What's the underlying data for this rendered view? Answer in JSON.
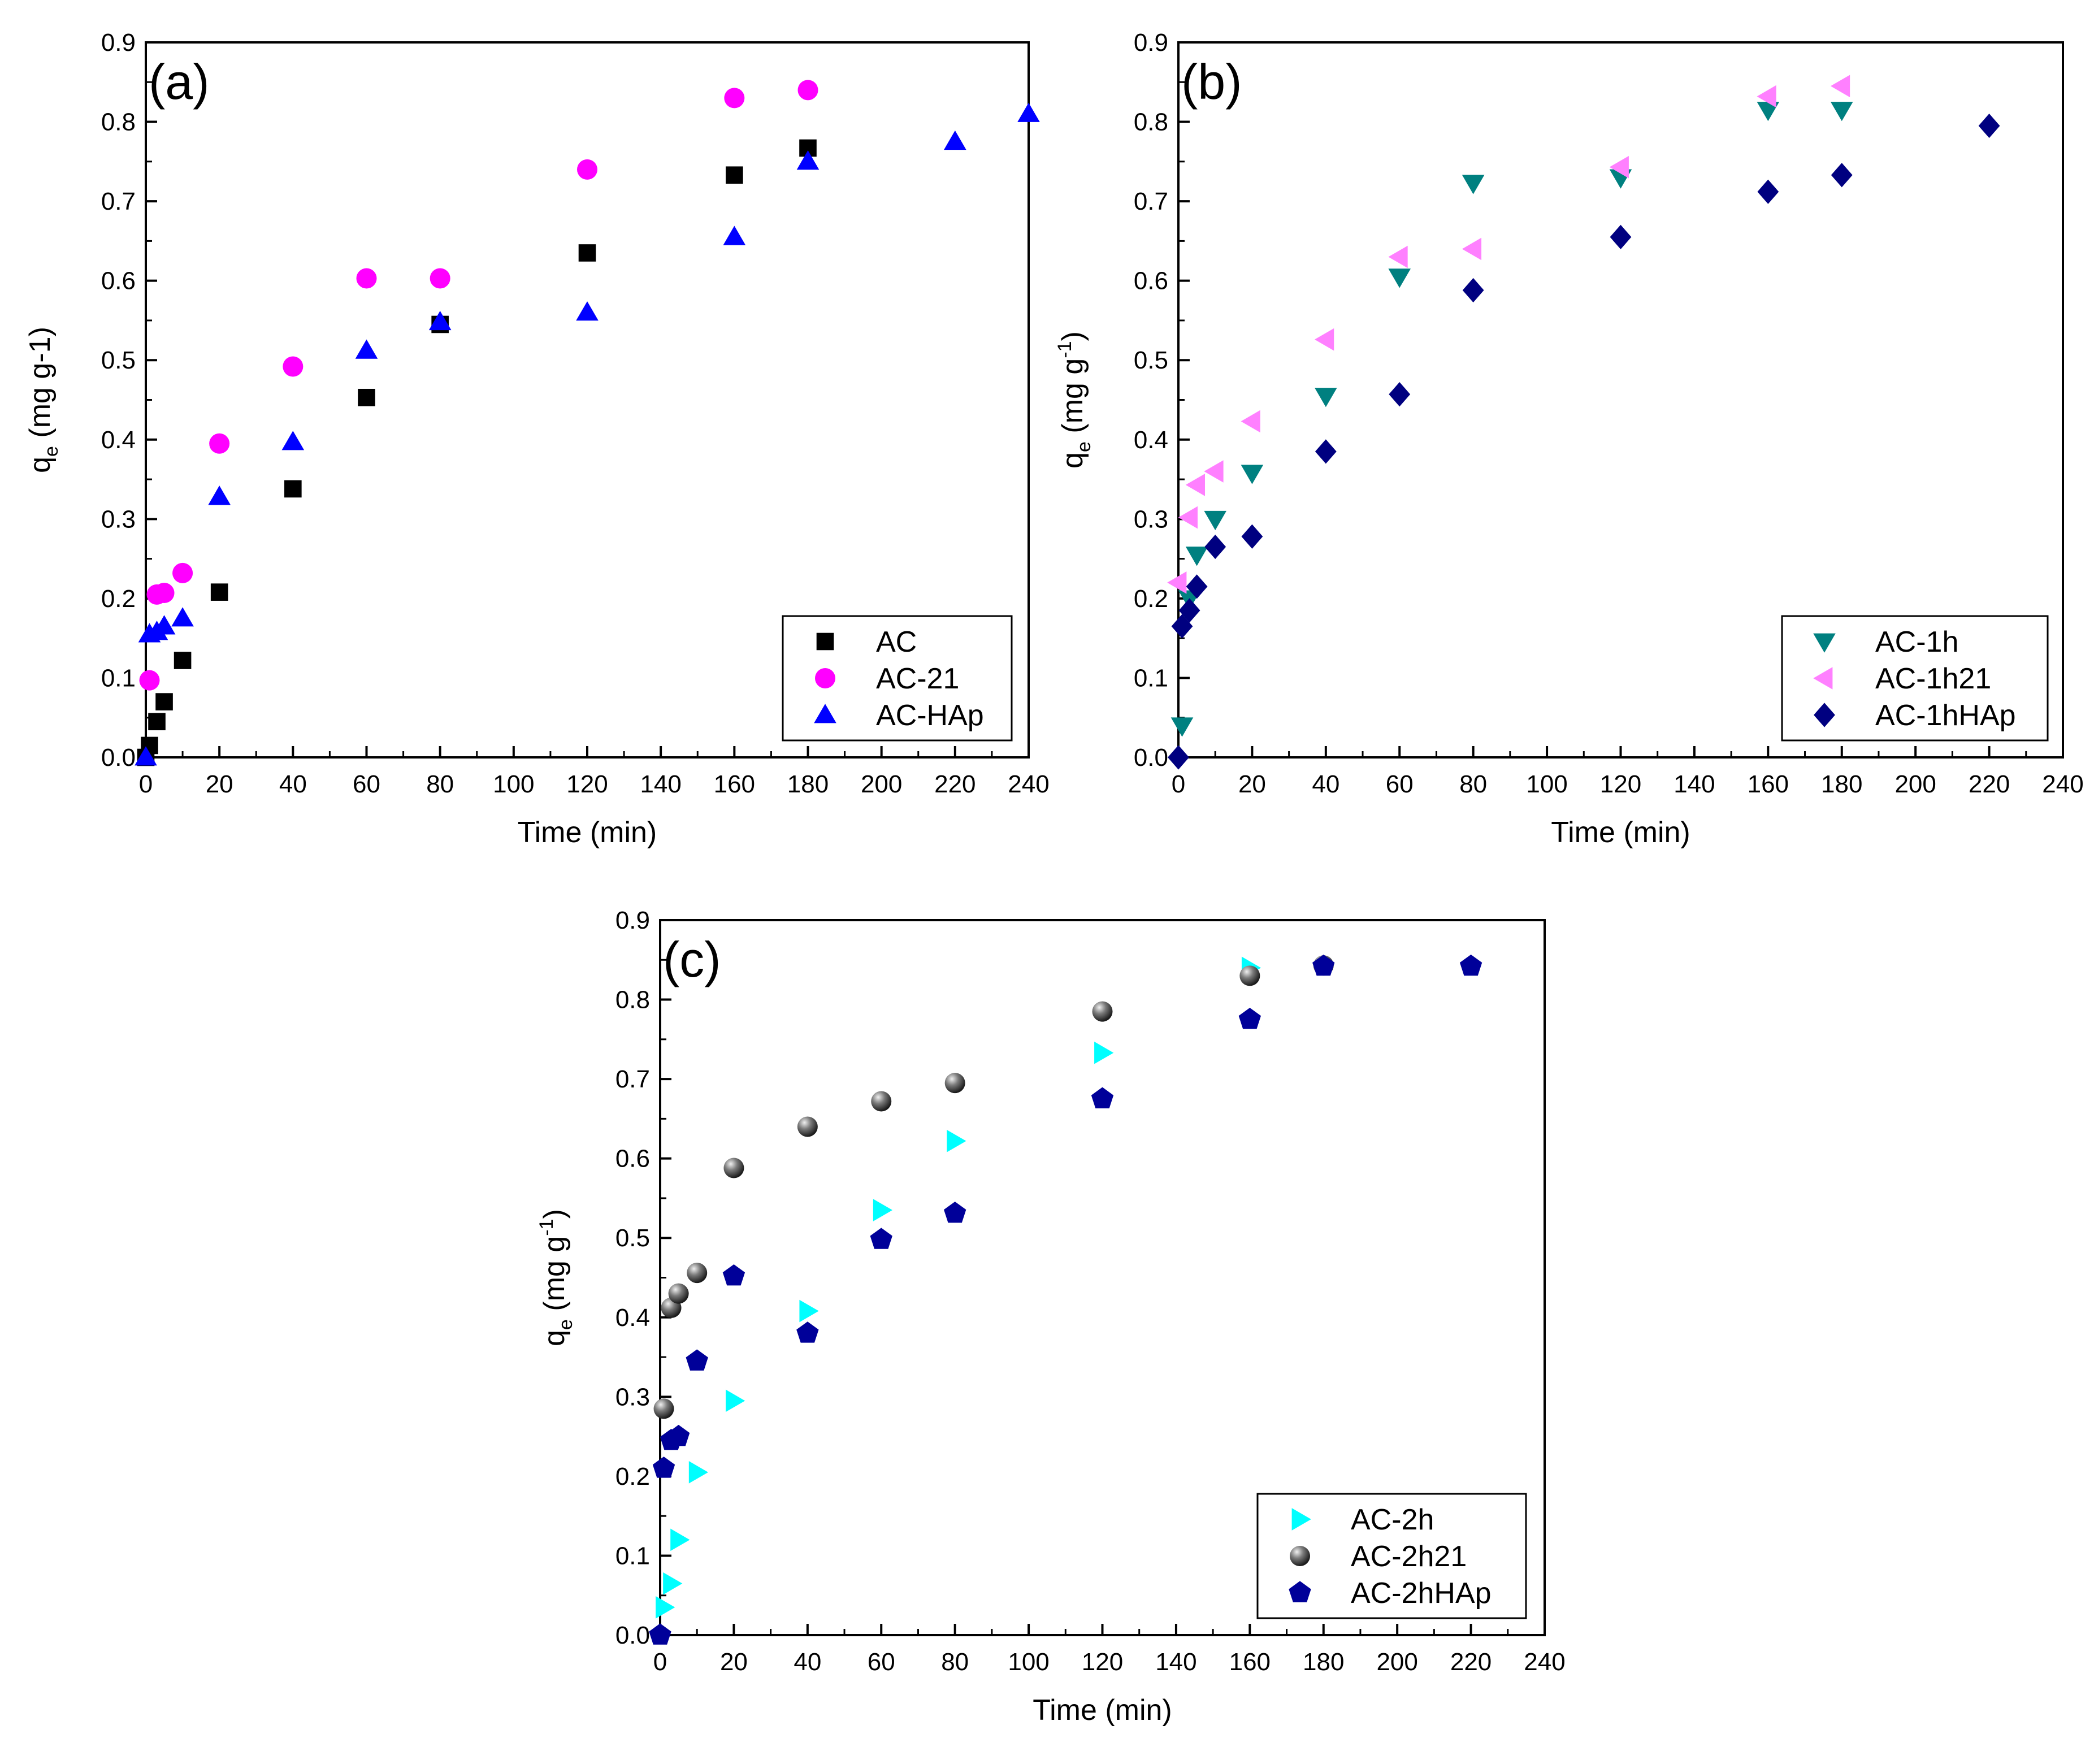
{
  "chart_data": [
    {
      "type": "scatter",
      "panel_label": "(a)",
      "xlabel": "Time (min)",
      "ylabel": "q",
      "ylabel_sub": "e",
      "ylabel_unit": " (mg g-1)",
      "ylabel_sup": "",
      "xlim": [
        0,
        240
      ],
      "ylim": [
        0,
        0.9
      ],
      "xticks": [
        "0",
        "20",
        "40",
        "60",
        "80",
        "100",
        "120",
        "140",
        "160",
        "180",
        "200",
        "220",
        "240"
      ],
      "yticks": [
        "0.0",
        "0.1",
        "0.2",
        "0.3",
        "0.4",
        "0.5",
        "0.6",
        "0.7",
        "0.8",
        "0.9"
      ],
      "series": [
        {
          "name": "AC",
          "marker": "square",
          "color": "#000000",
          "x": [
            0,
            1,
            3,
            5,
            10,
            20,
            40,
            60,
            80,
            120,
            160,
            180
          ],
          "y": [
            0.0,
            0.015,
            0.045,
            0.07,
            0.122,
            0.208,
            0.338,
            0.453,
            0.545,
            0.635,
            0.733,
            0.767
          ]
        },
        {
          "name": "AC-21",
          "marker": "circle",
          "color": "#ff00ff",
          "x": [
            1,
            3,
            5,
            10,
            20,
            40,
            60,
            80,
            120,
            160,
            180
          ],
          "y": [
            0.097,
            0.205,
            0.207,
            0.232,
            0.395,
            0.492,
            0.603,
            0.603,
            0.74,
            0.83,
            0.84
          ]
        },
        {
          "name": "AC-HAp",
          "marker": "triangle-up",
          "color": "#0000ff",
          "x": [
            0,
            1,
            3,
            5,
            10,
            20,
            40,
            60,
            80,
            120,
            160,
            180,
            220,
            240
          ],
          "y": [
            0.0,
            0.155,
            0.158,
            0.165,
            0.175,
            0.328,
            0.397,
            0.512,
            0.548,
            0.56,
            0.655,
            0.75,
            0.775,
            0.81
          ]
        }
      ]
    },
    {
      "type": "scatter",
      "panel_label": "(b)",
      "xlabel": "Time (min)",
      "ylabel": "q",
      "ylabel_sub": "e",
      "ylabel_unit": " (mg g",
      "ylabel_sup": "-1",
      "ylabel_close": ")",
      "xlim": [
        0,
        240
      ],
      "ylim": [
        0,
        0.9
      ],
      "xticks": [
        "0",
        "20",
        "40",
        "60",
        "80",
        "100",
        "120",
        "140",
        "160",
        "180",
        "200",
        "220",
        "240"
      ],
      "yticks": [
        "0.0",
        "0.1",
        "0.2",
        "0.3",
        "0.4",
        "0.5",
        "0.6",
        "0.7",
        "0.8",
        "0.9"
      ],
      "series": [
        {
          "name": "AC-1h",
          "marker": "triangle-down",
          "color": "#008080",
          "x": [
            1,
            3,
            5,
            10,
            20,
            40,
            60,
            80,
            120,
            160,
            180
          ],
          "y": [
            0.04,
            0.2,
            0.255,
            0.3,
            0.358,
            0.455,
            0.605,
            0.723,
            0.73,
            0.815,
            0.815
          ]
        },
        {
          "name": "AC-1h21",
          "marker": "triangle-left",
          "color": "#ff80ff",
          "x": [
            0,
            3,
            5,
            10,
            20,
            40,
            60,
            80,
            120,
            160,
            180
          ],
          "y": [
            0.22,
            0.302,
            0.343,
            0.36,
            0.423,
            0.526,
            0.63,
            0.64,
            0.743,
            0.832,
            0.845
          ]
        },
        {
          "name": "AC-1hHAp",
          "marker": "diamond",
          "color": "#000080",
          "x": [
            0,
            1,
            3,
            5,
            10,
            20,
            40,
            60,
            80,
            120,
            160,
            180,
            220
          ],
          "y": [
            0.0,
            0.165,
            0.185,
            0.215,
            0.265,
            0.278,
            0.385,
            0.457,
            0.588,
            0.655,
            0.712,
            0.733,
            0.795
          ]
        }
      ]
    },
    {
      "type": "scatter",
      "panel_label": "(c)",
      "xlabel": "Time (min)",
      "ylabel": "q",
      "ylabel_sub": "e",
      "ylabel_unit": " (mg g",
      "ylabel_sup": "-1",
      "ylabel_close": ")",
      "xlim": [
        0,
        240
      ],
      "ylim": [
        0,
        0.9
      ],
      "xticks": [
        "0",
        "20",
        "40",
        "60",
        "80",
        "100",
        "120",
        "140",
        "160",
        "180",
        "200",
        "220",
        "240"
      ],
      "yticks": [
        "0.0",
        "0.1",
        "0.2",
        "0.3",
        "0.4",
        "0.5",
        "0.6",
        "0.7",
        "0.8",
        "0.9"
      ],
      "series": [
        {
          "name": "AC-2h",
          "marker": "triangle-right",
          "color": "#00ffff",
          "x": [
            1,
            3,
            5,
            10,
            20,
            40,
            60,
            80,
            120,
            160
          ],
          "y": [
            0.035,
            0.065,
            0.12,
            0.205,
            0.295,
            0.408,
            0.535,
            0.622,
            0.733,
            0.84
          ]
        },
        {
          "name": "AC-2h21",
          "marker": "sphere",
          "color": "#555555",
          "x": [
            1,
            3,
            5,
            10,
            20,
            40,
            60,
            80,
            120,
            160,
            180
          ],
          "y": [
            0.285,
            0.412,
            0.43,
            0.456,
            0.588,
            0.64,
            0.672,
            0.695,
            0.785,
            0.83,
            0.843
          ]
        },
        {
          "name": "AC-2hHAp",
          "marker": "pentagon",
          "color": "#000099",
          "x": [
            0,
            1,
            3,
            5,
            10,
            20,
            40,
            60,
            80,
            120,
            160,
            180,
            220
          ],
          "y": [
            0.0,
            0.21,
            0.245,
            0.25,
            0.345,
            0.452,
            0.38,
            0.498,
            0.531,
            0.675,
            0.775,
            0.842,
            0.842
          ]
        }
      ]
    }
  ]
}
